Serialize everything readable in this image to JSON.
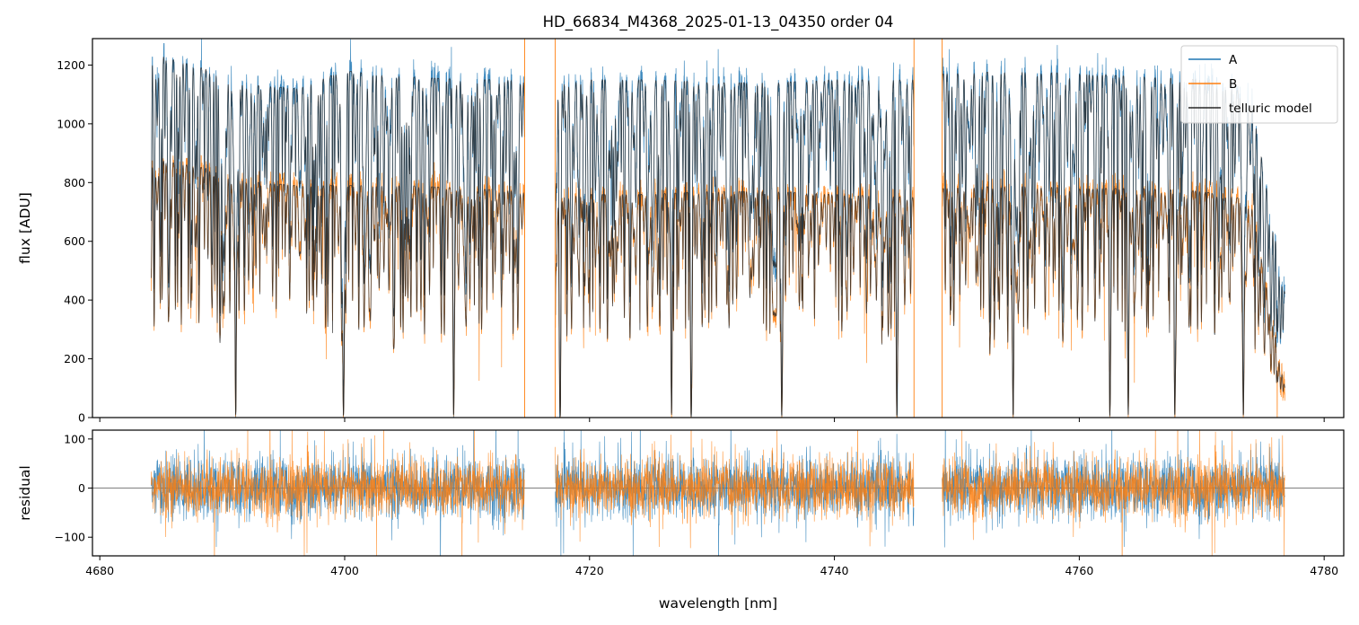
{
  "chart_data": [
    {
      "type": "line",
      "panel": "top",
      "title": "HD_66834_M4368_2025-01-13_04350  order 04",
      "xlabel": "",
      "ylabel": "flux [ADU]",
      "xlim": [
        4679.4,
        4781.6
      ],
      "ylim": [
        0,
        1290
      ],
      "x_ticks": [
        4680,
        4700,
        4720,
        4740,
        4760,
        4780
      ],
      "x_tick_labels_shown": false,
      "y_ticks": [
        0,
        200,
        400,
        600,
        800,
        1000,
        1200
      ],
      "y_tick_labels": [
        "0",
        "200",
        "400",
        "600",
        "800",
        "1000",
        "1200"
      ],
      "legend": {
        "placement": "top-right",
        "entries": [
          "A",
          "B",
          "telluric model"
        ]
      },
      "gaps": [
        [
          4714.7,
          4717.2
        ],
        [
          4746.5,
          4748.8
        ]
      ],
      "x_range": [
        4684.2,
        4776.8
      ],
      "series": [
        {
          "name": "A",
          "color": "#1f77b4",
          "continuum": [
            [
              4684.2,
              1240
            ],
            [
              4690,
              1170
            ],
            [
              4693,
              1130
            ],
            [
              4696,
              1120
            ],
            [
              4700,
              1180
            ],
            [
              4705,
              1160
            ],
            [
              4710,
              1150
            ],
            [
              4714.7,
              1150
            ],
            [
              4717.2,
              1150
            ],
            [
              4725,
              1150
            ],
            [
              4730,
              1140
            ],
            [
              4735,
              1140
            ],
            [
              4740,
              1150
            ],
            [
              4746.5,
              1150
            ],
            [
              4748.8,
              1170
            ],
            [
              4755,
              1180
            ],
            [
              4760,
              1170
            ],
            [
              4765,
              1160
            ],
            [
              4770,
              1150
            ],
            [
              4774,
              1100
            ],
            [
              4776.8,
              420
            ]
          ],
          "deep_lines": [
            4691.1,
            4699.9,
            4708.9,
            4717.6,
            4726.7,
            4728.3,
            4735.7,
            4745.1,
            4754.6,
            4762.5,
            4764.0,
            4767.8,
            4773.4
          ]
        },
        {
          "name": "B",
          "color": "#ff7f0e",
          "continuum": [
            [
              4684.2,
              880
            ],
            [
              4690,
              840
            ],
            [
              4693,
              800
            ],
            [
              4696,
              790
            ],
            [
              4700,
              790
            ],
            [
              4705,
              790
            ],
            [
              4710,
              780
            ],
            [
              4714.7,
              770
            ],
            [
              4717.2,
              760
            ],
            [
              4725,
              760
            ],
            [
              4730,
              770
            ],
            [
              4735,
              770
            ],
            [
              4740,
              760
            ],
            [
              4746.5,
              750
            ],
            [
              4748.8,
              780
            ],
            [
              4755,
              790
            ],
            [
              4760,
              780
            ],
            [
              4765,
              780
            ],
            [
              4770,
              770
            ],
            [
              4774,
              740
            ],
            [
              4776.8,
              100
            ]
          ],
          "deep_lines": [
            4691.1,
            4699.9,
            4708.9,
            4717.6,
            4726.7,
            4728.3,
            4735.7,
            4745.1,
            4754.6,
            4762.5,
            4764.0,
            4767.8,
            4773.4
          ]
        },
        {
          "name": "telluric model",
          "color": "#262626"
        }
      ]
    },
    {
      "type": "line",
      "panel": "bottom",
      "title": "",
      "xlabel": "wavelength [nm]",
      "ylabel": "residual",
      "xlim": [
        4679.4,
        4781.6
      ],
      "ylim": [
        -138,
        118
      ],
      "x_ticks": [
        4680,
        4700,
        4720,
        4740,
        4760,
        4780
      ],
      "x_tick_labels": [
        "4680",
        "4700",
        "4720",
        "4740",
        "4760",
        "4780"
      ],
      "y_ticks": [
        -100,
        0,
        100
      ],
      "y_tick_labels": [
        "−100",
        "0",
        "100"
      ],
      "reference_line": 0,
      "series": [
        {
          "name": "A",
          "color": "#1f77b4",
          "noise_std": 32
        },
        {
          "name": "B",
          "color": "#ff7f0e",
          "noise_std": 30
        }
      ]
    }
  ]
}
